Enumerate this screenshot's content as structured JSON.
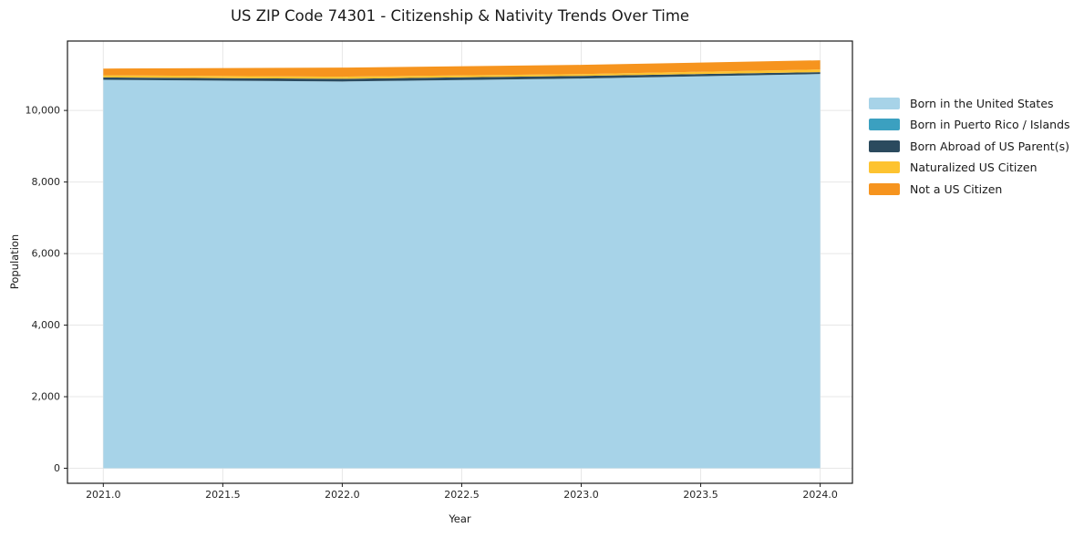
{
  "title": "US ZIP Code 74301 - Citizenship & Nativity Trends Over Time",
  "chart_data": {
    "type": "area",
    "stacked": true,
    "title": "US ZIP Code 74301 - Citizenship & Nativity Trends Over Time",
    "xlabel": "Year",
    "ylabel": "Population",
    "x": [
      2021,
      2022,
      2023,
      2024
    ],
    "series": [
      {
        "name": "Born in the United States",
        "color": "#a7d3e8",
        "values": [
          10857,
          10809,
          10891,
          11018
        ]
      },
      {
        "name": "Born in Puerto Rico / Islands",
        "color": "#3ba0c0",
        "values": [
          0,
          0,
          0,
          0
        ]
      },
      {
        "name": "Born Abroad of US Parent(s)",
        "color": "#2b4a5e",
        "values": [
          66,
          76,
          74,
          52
        ]
      },
      {
        "name": "Naturalized US Citizen",
        "color": "#fdc330",
        "values": [
          61,
          58,
          52,
          76
        ]
      },
      {
        "name": "Not a US Citizen",
        "color": "#f6941e",
        "values": [
          186,
          254,
          256,
          256
        ]
      }
    ],
    "x_ticks": [
      2021.0,
      2021.5,
      2022.0,
      2022.5,
      2023.0,
      2023.5,
      2024.0
    ],
    "x_tick_labels": [
      "2021.0",
      "2021.5",
      "2022.0",
      "2022.5",
      "2023.0",
      "2023.5",
      "2024.0"
    ],
    "y_ticks": [
      0,
      2000,
      4000,
      6000,
      8000,
      10000
    ],
    "y_tick_labels": [
      "0",
      "2,000",
      "4,000",
      "6,000",
      "8,000",
      "10,000"
    ],
    "xlim": [
      2020.85,
      2024.135
    ],
    "ylim": [
      -420,
      11940
    ],
    "grid": true,
    "grid_color": "#e7e7e7",
    "spine_color": "#1a1a1a",
    "tick_text_color": "#262626",
    "legend_position": "right outside"
  }
}
